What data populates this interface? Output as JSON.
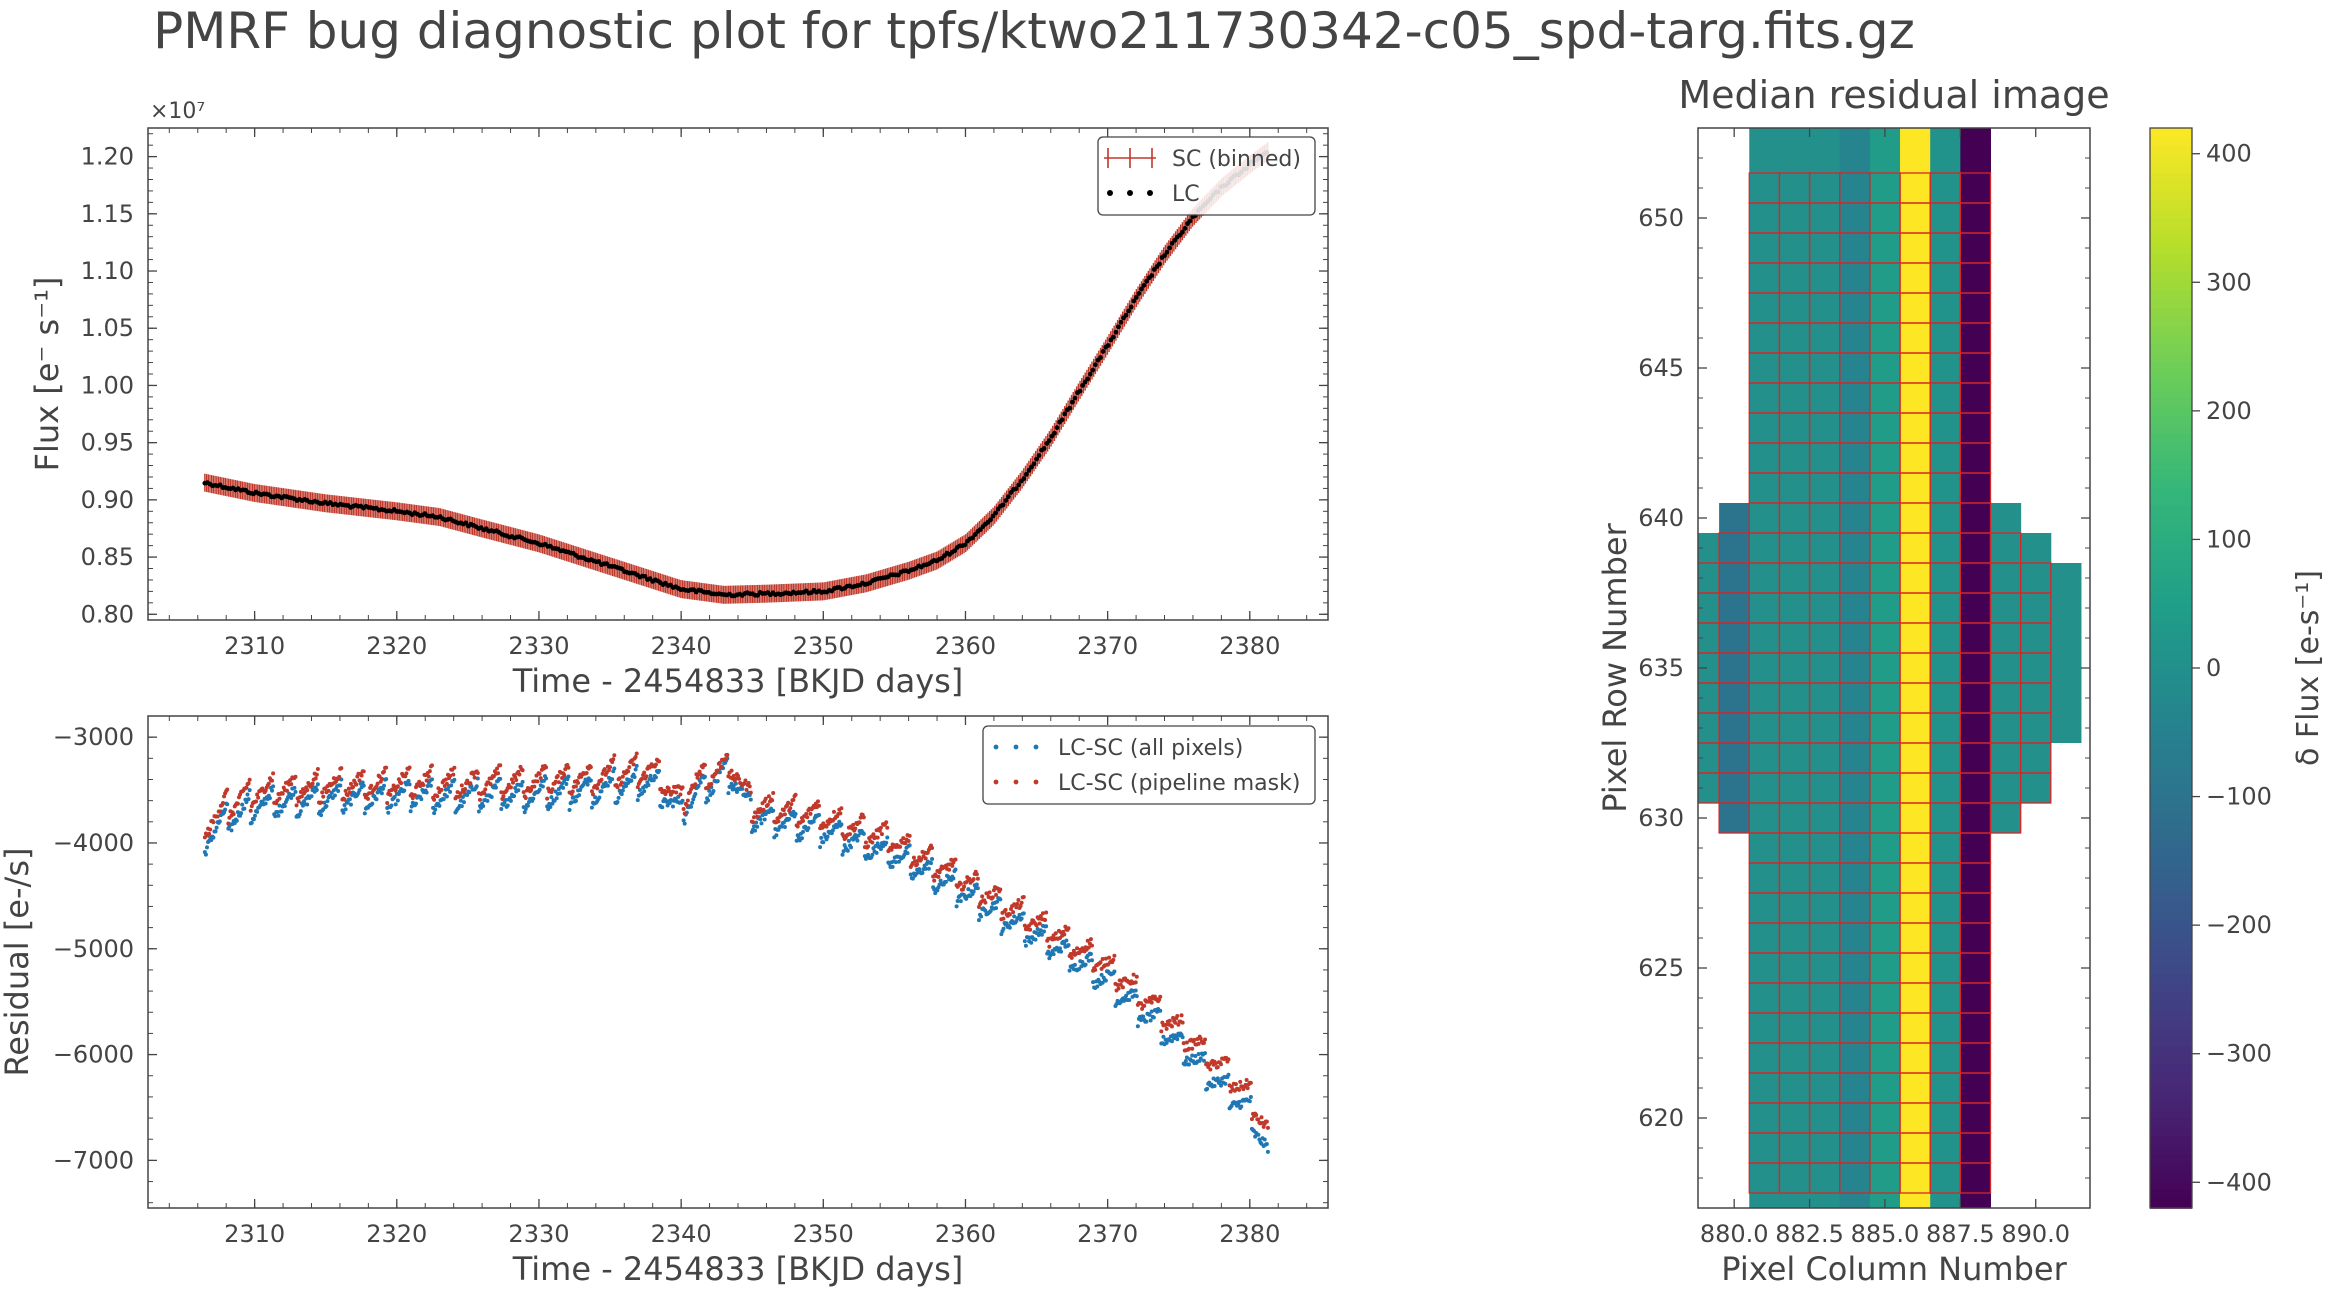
{
  "title": "PMRF bug diagnostic plot for tpfs/ktwo211730342-c05_spd-targ.fits.gz",
  "colors": {
    "sc": "#c0392b",
    "lc": "#000000",
    "all_pixels": "#1f77b4",
    "pipeline_mask": "#c0392b",
    "axis": "#444444"
  },
  "chart_data": [
    {
      "id": "flux",
      "type": "scatter",
      "xlabel": "Time - 2454833 [BKJD days]",
      "ylabel": "Flux [e⁻ s⁻¹]",
      "offset_label": "×10⁷",
      "xlim": [
        2302.5,
        2385.5
      ],
      "ylim": [
        0.795,
        1.225
      ],
      "xticks": [
        2310,
        2320,
        2330,
        2340,
        2350,
        2360,
        2370,
        2380
      ],
      "yticks": [
        0.8,
        0.85,
        0.9,
        0.95,
        1.0,
        1.05,
        1.1,
        1.15,
        1.2
      ],
      "ytick_labels": [
        "0.80",
        "0.85",
        "0.90",
        "0.95",
        "1.00",
        "1.05",
        "1.10",
        "1.15",
        "1.20"
      ],
      "legend_position": "top-right",
      "series": [
        {
          "name": "SC (binned)",
          "style": "errorbar",
          "x": [
            2306.5,
            2310,
            2315,
            2320,
            2323,
            2326,
            2330,
            2335,
            2340,
            2343,
            2346,
            2350,
            2353,
            2356,
            2358,
            2360,
            2362,
            2364,
            2366,
            2368,
            2370,
            2372,
            2374,
            2376,
            2378,
            2380,
            2381.3
          ],
          "y": [
            0.915,
            0.906,
            0.897,
            0.89,
            0.885,
            0.875,
            0.862,
            0.842,
            0.822,
            0.817,
            0.818,
            0.82,
            0.827,
            0.838,
            0.847,
            0.862,
            0.886,
            0.918,
            0.954,
            0.995,
            1.035,
            1.076,
            1.114,
            1.147,
            1.173,
            1.193,
            1.205
          ]
        },
        {
          "name": "LC",
          "style": "dots",
          "x": [
            2306.5,
            2310,
            2315,
            2320,
            2323,
            2326,
            2330,
            2335,
            2340,
            2343,
            2346,
            2350,
            2353,
            2356,
            2358,
            2360,
            2362,
            2364,
            2366,
            2368,
            2370,
            2372,
            2374,
            2376,
            2378,
            2380,
            2381.3
          ],
          "y": [
            0.915,
            0.906,
            0.897,
            0.89,
            0.885,
            0.875,
            0.862,
            0.842,
            0.822,
            0.817,
            0.818,
            0.82,
            0.827,
            0.838,
            0.847,
            0.862,
            0.886,
            0.918,
            0.954,
            0.995,
            1.035,
            1.076,
            1.114,
            1.147,
            1.173,
            1.193,
            1.205
          ]
        }
      ]
    },
    {
      "id": "residual",
      "type": "scatter",
      "xlabel": "Time - 2454833 [BKJD days]",
      "ylabel": "Residual [e-/s]",
      "xlim": [
        2302.5,
        2385.5
      ],
      "ylim": [
        -7450,
        -2800
      ],
      "xticks": [
        2310,
        2320,
        2330,
        2340,
        2350,
        2360,
        2370,
        2380
      ],
      "yticks": [
        -3000,
        -4000,
        -5000,
        -6000,
        -7000
      ],
      "ytick_labels": [
        "−3000",
        "−4000",
        "−5000",
        "−6000",
        "−7000"
      ],
      "legend_position": "top-right",
      "series": [
        {
          "name": "LC-SC (all pixels)",
          "x": [
            2306.5,
            2308,
            2310,
            2315,
            2320,
            2325,
            2330,
            2335,
            2338,
            2340,
            2341,
            2343.5,
            2345,
            2350,
            2355,
            2360,
            2365,
            2370,
            2375,
            2378,
            2380,
            2381.3
          ],
          "y": [
            -3950,
            -3780,
            -3650,
            -3580,
            -3560,
            -3560,
            -3540,
            -3480,
            -3420,
            -3720,
            -3520,
            -3340,
            -3750,
            -3880,
            -4120,
            -4480,
            -4880,
            -5300,
            -5900,
            -6300,
            -6550,
            -6950
          ],
          "spread": 280
        },
        {
          "name": "LC-SC (pipeline mask)",
          "x": [
            2306.5,
            2308,
            2310,
            2315,
            2320,
            2325,
            2330,
            2335,
            2338,
            2340,
            2341,
            2343.5,
            2345,
            2350,
            2355,
            2360,
            2365,
            2370,
            2375,
            2378,
            2380,
            2381.3
          ],
          "y": [
            -3820,
            -3660,
            -3520,
            -3460,
            -3440,
            -3440,
            -3420,
            -3360,
            -3300,
            -3620,
            -3420,
            -3250,
            -3650,
            -3750,
            -3990,
            -4360,
            -4760,
            -5160,
            -5760,
            -6120,
            -6400,
            -6750
          ],
          "spread": 280
        }
      ]
    },
    {
      "id": "residual_image",
      "type": "heatmap",
      "title": "Median residual image",
      "xlabel": "Pixel Column Number",
      "ylabel": "Pixel Row Number",
      "xlim": [
        878.8,
        891.8
      ],
      "ylim": [
        617,
        653
      ],
      "xticks": [
        880.0,
        882.5,
        885.0,
        887.5,
        890.0
      ],
      "xtick_labels": [
        "880.0",
        "882.5",
        "885.0",
        "887.5",
        "890.0"
      ],
      "yticks": [
        620,
        625,
        630,
        635,
        640,
        645,
        650
      ],
      "colorbar_label": "δ Flux [e-s⁻¹]",
      "colorbar_range": [
        -420,
        420
      ],
      "colorbar_ticks": [
        400,
        300,
        200,
        100,
        0,
        -100,
        -200,
        -300,
        -400
      ],
      "colorbar_tick_labels": [
        "400",
        "300",
        "200",
        "100",
        "0",
        "−100",
        "−200",
        "−300",
        "−400"
      ],
      "cells": [
        {
          "col": 879,
          "rows": [
            631,
            638
          ],
          "value": 0
        },
        {
          "col": 880,
          "rows": [
            630,
            639
          ],
          "value": -100
        },
        {
          "col": 881,
          "rows": [
            617,
            652
          ],
          "value": 0
        },
        {
          "col": 882,
          "rows": [
            617,
            652
          ],
          "value": 0
        },
        {
          "col": 883,
          "rows": [
            617,
            652
          ],
          "value": 0
        },
        {
          "col": 884,
          "rows": [
            617,
            652
          ],
          "value": -40
        },
        {
          "col": 885,
          "rows": [
            617,
            652
          ],
          "value": 40
        },
        {
          "col": 886,
          "rows": [
            617,
            652
          ],
          "value": 420
        },
        {
          "col": 887,
          "rows": [
            617,
            652
          ],
          "value": 10
        },
        {
          "col": 888,
          "rows": [
            617,
            652
          ],
          "value": -420
        },
        {
          "col": 889,
          "rows": [
            630,
            639
          ],
          "value": 0
        },
        {
          "col": 890,
          "rows": [
            631,
            638
          ],
          "value": 0
        },
        {
          "col": 891,
          "rows": [
            633,
            637
          ],
          "value": 0
        }
      ],
      "mask": [
        {
          "col": 882,
          "rows": [
            618,
            651
          ]
        },
        {
          "col": 883,
          "rows": [
            618,
            651
          ]
        },
        {
          "col": 884,
          "rows": [
            618,
            651
          ]
        },
        {
          "col": 885,
          "rows": [
            618,
            651
          ]
        },
        {
          "col": 886,
          "rows": [
            618,
            651
          ]
        },
        {
          "col": 887,
          "rows": [
            618,
            651
          ]
        },
        {
          "col": 888,
          "rows": [
            618,
            651
          ]
        },
        {
          "col": 881,
          "rows": [
            618,
            651
          ]
        },
        {
          "col": 889,
          "rows": [
            630,
            639
          ]
        },
        {
          "col": 890,
          "rows": [
            631,
            638
          ]
        },
        {
          "col": 880,
          "rows": [
            630,
            639
          ]
        },
        {
          "col": 879,
          "rows": [
            631,
            638
          ]
        }
      ]
    }
  ]
}
